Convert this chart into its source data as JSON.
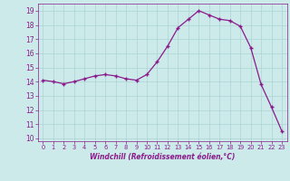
{
  "x": [
    0,
    1,
    2,
    3,
    4,
    5,
    6,
    7,
    8,
    9,
    10,
    11,
    12,
    13,
    14,
    15,
    16,
    17,
    18,
    19,
    20,
    21,
    22,
    23
  ],
  "y": [
    14.1,
    14.0,
    13.85,
    14.0,
    14.2,
    14.4,
    14.5,
    14.4,
    14.2,
    14.1,
    14.5,
    15.4,
    16.5,
    17.8,
    18.4,
    19.0,
    18.7,
    18.4,
    18.3,
    17.9,
    16.4,
    13.8,
    12.2,
    10.5
  ],
  "line_color": "#8b1a8b",
  "marker": "D",
  "marker_size": 2.0,
  "bg_color": "#cceaea",
  "grid_color": "#aad4d4",
  "xlabel": "Windchill (Refroidissement éolien,°C)",
  "xlabel_color": "#8b1a8b",
  "tick_color": "#8b1a8b",
  "ylim": [
    9.8,
    19.5
  ],
  "xlim": [
    -0.5,
    23.5
  ],
  "yticks": [
    10,
    11,
    12,
    13,
    14,
    15,
    16,
    17,
    18,
    19
  ],
  "xticks": [
    0,
    1,
    2,
    3,
    4,
    5,
    6,
    7,
    8,
    9,
    10,
    11,
    12,
    13,
    14,
    15,
    16,
    17,
    18,
    19,
    20,
    21,
    22,
    23
  ]
}
